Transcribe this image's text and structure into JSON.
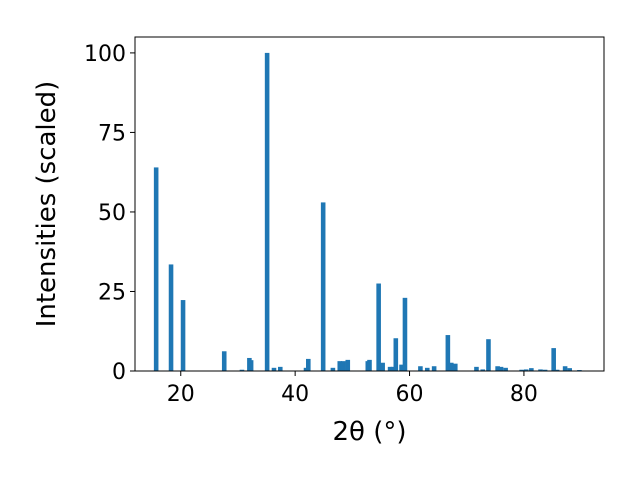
{
  "chart_data": {
    "type": "bar",
    "title": "",
    "xlabel": "2θ (°)",
    "ylabel": "Intensities (scaled)",
    "xlim": [
      12,
      94
    ],
    "ylim": [
      0,
      105
    ],
    "xticks": [
      20,
      40,
      60,
      80
    ],
    "yticks": [
      0,
      25,
      50,
      75,
      100
    ],
    "grid": false,
    "bar_width": 0.8,
    "color": "#1f77b4",
    "x": [
      15.7,
      18.3,
      20.4,
      27.6,
      30.7,
      32.0,
      32.3,
      35.1,
      36.3,
      37.4,
      41.9,
      42.3,
      44.9,
      46.6,
      47.8,
      48.4,
      49.2,
      52.7,
      53.0,
      54.6,
      55.3,
      56.6,
      57.1,
      57.6,
      58.6,
      59.2,
      61.9,
      63.1,
      64.3,
      66.7,
      67.3,
      68.0,
      71.7,
      72.8,
      73.8,
      75.4,
      76.0,
      76.8,
      79.6,
      80.4,
      81.3,
      82.9,
      83.7,
      85.2,
      85.8,
      87.2,
      88.0,
      89.7
    ],
    "values": [
      64.0,
      33.5,
      22.3,
      6.2,
      0.4,
      4.1,
      3.4,
      100.0,
      1.0,
      1.3,
      1.0,
      3.8,
      53.0,
      1.0,
      3.1,
      3.1,
      3.5,
      3.1,
      3.5,
      27.5,
      2.6,
      1.3,
      1.3,
      10.3,
      2.0,
      23.0,
      1.5,
      1.0,
      1.5,
      11.3,
      2.6,
      2.3,
      1.3,
      0.5,
      10.0,
      1.5,
      1.3,
      1.0,
      0.4,
      0.5,
      0.9,
      0.5,
      0.4,
      7.2,
      0.4,
      1.5,
      0.9,
      0.3
    ]
  }
}
